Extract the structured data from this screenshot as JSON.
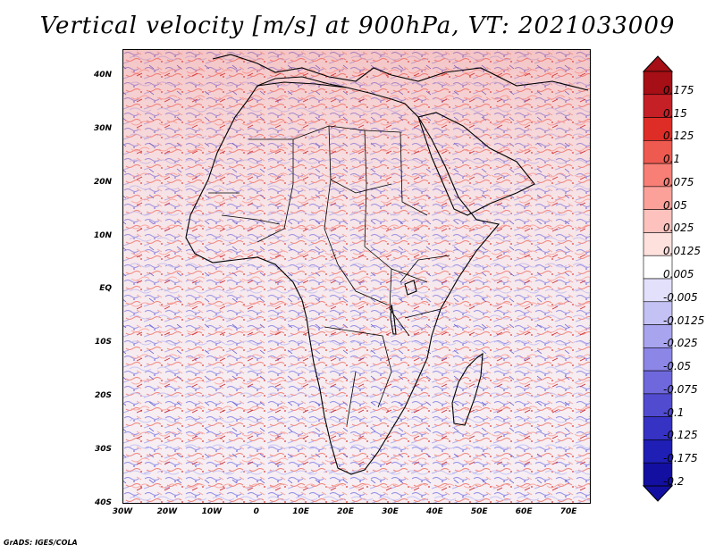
{
  "title": "Vertical velocity [m/s] at 900hPa, VT: 2021033009",
  "credit": "GrADS: IGES/COLA",
  "map": {
    "lon_range": [
      -30,
      75
    ],
    "lat_range": [
      -40,
      45
    ],
    "lat_ticks": [
      {
        "lat": 40,
        "label": "40N"
      },
      {
        "lat": 30,
        "label": "30N"
      },
      {
        "lat": 20,
        "label": "20N"
      },
      {
        "lat": 10,
        "label": "10N"
      },
      {
        "lat": 0,
        "label": "EQ"
      },
      {
        "lat": -10,
        "label": "10S"
      },
      {
        "lat": -20,
        "label": "20S"
      },
      {
        "lat": -30,
        "label": "30S"
      },
      {
        "lat": -40,
        "label": "40S"
      }
    ],
    "lon_ticks": [
      {
        "lon": -30,
        "label": "30W"
      },
      {
        "lon": -20,
        "label": "20W"
      },
      {
        "lon": -10,
        "label": "10W"
      },
      {
        "lon": 0,
        "label": "0"
      },
      {
        "lon": 10,
        "label": "10E"
      },
      {
        "lon": 20,
        "label": "20E"
      },
      {
        "lon": 30,
        "label": "30E"
      },
      {
        "lon": 40,
        "label": "40E"
      },
      {
        "lon": 50,
        "label": "50E"
      },
      {
        "lon": 60,
        "label": "60E"
      },
      {
        "lon": 70,
        "label": "70E"
      }
    ]
  },
  "colorbar": {
    "colors": [
      "#a50f15",
      "#c62027",
      "#de2d26",
      "#ef5a50",
      "#f77f76",
      "#fba19a",
      "#fdc2bd",
      "#fee0dd",
      "#ffffff",
      "#e2e0fb",
      "#c4c1f5",
      "#a8a4ee",
      "#8c86e6",
      "#6f68dc",
      "#514bd0",
      "#3632c4",
      "#1f1eb5",
      "#130fa0"
    ],
    "labels": [
      "0.175",
      "0.15",
      "0.125",
      "0.1",
      "0.075",
      "0.05",
      "0.025",
      "0.0125",
      "0.005",
      "-0.005",
      "-0.0125",
      "-0.025",
      "-0.05",
      "-0.075",
      "-0.1",
      "-0.125",
      "-0.175",
      "-0.2"
    ]
  }
}
